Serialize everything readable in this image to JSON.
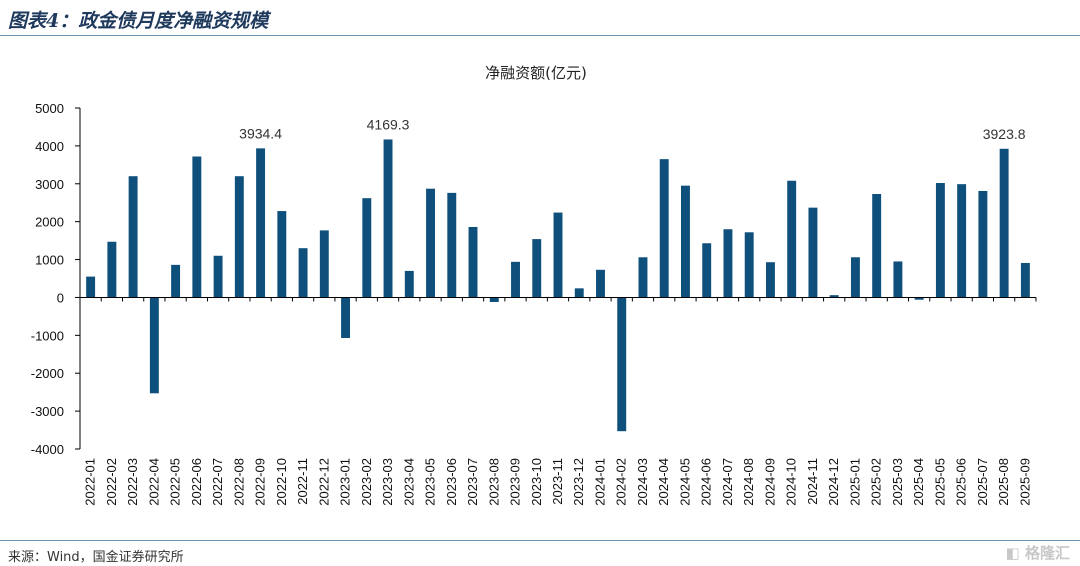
{
  "header": {
    "title": "图表4：政金债月度净融资规模"
  },
  "footer": {
    "source": "来源：Wind，国金证券研究所",
    "watermark": "格隆汇"
  },
  "chart_data": {
    "type": "bar",
    "title": "净融资额(亿元)",
    "xlabel": "",
    "ylabel": "",
    "ylim": [
      -4000,
      5000
    ],
    "yticks": [
      -4000,
      -3000,
      -2000,
      -1000,
      0,
      1000,
      2000,
      3000,
      4000,
      5000
    ],
    "grid": false,
    "legend": "none",
    "bar_color": "#0e4f7c",
    "categories": [
      "2022-01",
      "2022-02",
      "2022-03",
      "2022-04",
      "2022-05",
      "2022-06",
      "2022-07",
      "2022-08",
      "2022-09",
      "2022-10",
      "2022-11",
      "2022-12",
      "2023-01",
      "2023-02",
      "2023-03",
      "2023-04",
      "2023-05",
      "2023-06",
      "2023-07",
      "2023-08",
      "2023-09",
      "2023-10",
      "2023-11",
      "2023-12",
      "2024-01",
      "2024-02",
      "2024-03",
      "2024-04",
      "2024-05",
      "2024-06",
      "2024-07",
      "2024-08",
      "2024-09",
      "2024-10",
      "2024-11",
      "2024-12",
      "2025-01",
      "2025-02",
      "2025-03",
      "2025-04",
      "2025-05",
      "2025-06",
      "2025-07",
      "2025-08",
      "2025-09"
    ],
    "values": [
      550,
      1470,
      3200,
      -2530,
      860,
      3720,
      1100,
      3200,
      3934.4,
      2280,
      1300,
      1770,
      -1070,
      2620,
      4169.3,
      700,
      2870,
      2760,
      1860,
      -120,
      940,
      1540,
      2240,
      240,
      730,
      -3530,
      1060,
      3650,
      2950,
      1430,
      1800,
      1720,
      930,
      3080,
      2370,
      60,
      1060,
      2730,
      950,
      -60,
      3020,
      2990,
      2810,
      3923.8,
      910
    ],
    "data_labels": [
      {
        "index": 8,
        "text": "3934.4"
      },
      {
        "index": 14,
        "text": "4169.3"
      },
      {
        "index": 43,
        "text": "3923.8"
      }
    ]
  }
}
